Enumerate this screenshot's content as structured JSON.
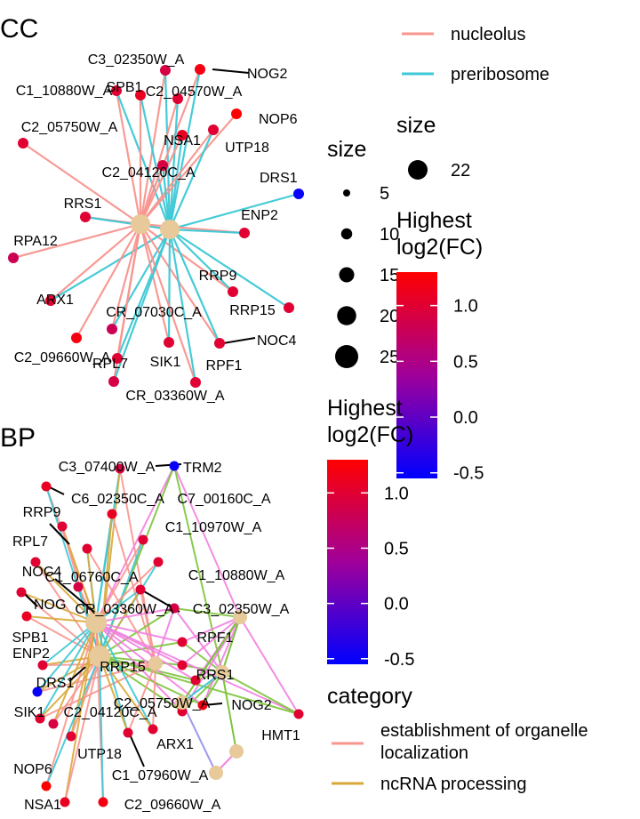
{
  "chart_data": [
    {
      "type": "network",
      "title": "CC",
      "hubs": [
        {
          "name": "nucleolus",
          "size": 22
        },
        {
          "name": "preribosome",
          "size": 22
        }
      ],
      "genes": [
        {
          "name": "C3_02350W_A",
          "log2fc": 0.9
        },
        {
          "name": "NOG2",
          "log2fc": 1.2
        },
        {
          "name": "C1_10880W_A",
          "log2fc": 1.0
        },
        {
          "name": "SPB1",
          "log2fc": 1.1
        },
        {
          "name": "C2_04570W_A",
          "log2fc": 1.0
        },
        {
          "name": "NOP6",
          "log2fc": 1.3
        },
        {
          "name": "C2_05750W_A",
          "log2fc": 1.0
        },
        {
          "name": "NSA1",
          "log2fc": 1.1
        },
        {
          "name": "UTP18",
          "log2fc": 1.0
        },
        {
          "name": "C2_04120C_A",
          "log2fc": 0.9
        },
        {
          "name": "DRS1",
          "log2fc": -0.5
        },
        {
          "name": "RRS1",
          "log2fc": 1.0
        },
        {
          "name": "ENP2",
          "log2fc": 1.0
        },
        {
          "name": "RPA12",
          "log2fc": 0.8
        },
        {
          "name": "RRP9",
          "log2fc": 1.0
        },
        {
          "name": "ARX1",
          "log2fc": 1.0
        },
        {
          "name": "RRP15",
          "log2fc": 1.0
        },
        {
          "name": "CR_07030C_A",
          "log2fc": 0.8
        },
        {
          "name": "NOC4",
          "log2fc": 1.0
        },
        {
          "name": "C2_09660W_A",
          "log2fc": 1.2
        },
        {
          "name": "RPL7",
          "log2fc": 1.0
        },
        {
          "name": "SIK1",
          "log2fc": 1.0
        },
        {
          "name": "RPF1",
          "log2fc": 1.0
        },
        {
          "name": "CR_03360W_A",
          "log2fc": 0.9
        }
      ],
      "legend": {
        "category_entries": [
          "nucleolus",
          "preribosome"
        ],
        "size_title": "size",
        "size_values": [
          5,
          10,
          15,
          20,
          25
        ],
        "hub_size_title": "size",
        "hub_size_values": [
          22
        ],
        "color_title": "Highest log2(FC)",
        "color_ticks": [
          1.0,
          0.5,
          0.0,
          -0.5
        ],
        "color_tick_labels": [
          "1.0",
          "0.5",
          "0.0",
          "-0.5"
        ],
        "color_range": [
          -0.55,
          1.3
        ]
      }
    },
    {
      "type": "network",
      "title": "BP",
      "genes": [
        {
          "name": "C3_07400W_A",
          "log2fc": 0.9
        },
        {
          "name": "TRM2",
          "log2fc": -0.5
        },
        {
          "name": "C6_02350C_A",
          "log2fc": 1.1
        },
        {
          "name": "C7_00160C_A",
          "log2fc": 1.1
        },
        {
          "name": "RRP9",
          "log2fc": 1.0
        },
        {
          "name": "C1_10970W_A",
          "log2fc": 1.0
        },
        {
          "name": "RPL7",
          "log2fc": 1.0
        },
        {
          "name": "NOC4",
          "log2fc": 1.0
        },
        {
          "name": "C1_06760C_A",
          "log2fc": 1.0
        },
        {
          "name": "C1_10880W_A",
          "log2fc": 1.0
        },
        {
          "name": "NOG",
          "log2fc": 1.0
        },
        {
          "name": "CR_03360W_A",
          "log2fc": 0.9
        },
        {
          "name": "C3_02350W_A",
          "log2fc": 0.9
        },
        {
          "name": "SPB1",
          "log2fc": 1.1
        },
        {
          "name": "RPF1",
          "log2fc": 1.0
        },
        {
          "name": "ENP2",
          "log2fc": 1.0
        },
        {
          "name": "RRP15",
          "log2fc": 1.0
        },
        {
          "name": "RRS1",
          "log2fc": 1.0
        },
        {
          "name": "DRS1",
          "log2fc": -0.5
        },
        {
          "name": "C2_05750W_A",
          "log2fc": 1.0
        },
        {
          "name": "NOG2",
          "log2fc": 1.2
        },
        {
          "name": "SIK1",
          "log2fc": 1.0
        },
        {
          "name": "C2_04120C_A",
          "log2fc": 0.9
        },
        {
          "name": "HMT1",
          "log2fc": 1.0
        },
        {
          "name": "ARX1",
          "log2fc": 1.0
        },
        {
          "name": "UTP18",
          "log2fc": 1.0
        },
        {
          "name": "NOP6",
          "log2fc": 1.3
        },
        {
          "name": "C1_07960W_A",
          "log2fc": 1.0
        },
        {
          "name": "NSA1",
          "log2fc": 1.1
        },
        {
          "name": "C2_09660W_A",
          "log2fc": 1.2
        }
      ],
      "legend": {
        "color_title": "Highest log2(FC)",
        "color_ticks": [
          1.0,
          0.5,
          0.0,
          -0.5
        ],
        "color_tick_labels": [
          "1.0",
          "0.5",
          "0.0",
          "-0.5"
        ],
        "color_range": [
          -0.55,
          1.3
        ],
        "category_title": "category",
        "category_entries": [
          "establishment of organelle localization",
          "ncRNA processing"
        ]
      }
    }
  ],
  "colors": {
    "nucleolus": "#F8958F",
    "preribosome": "#3CC8D5",
    "establishment of organelle localization": "#F8958F",
    "ncRNA processing": "#D8A83A",
    "ribosome biogenesis": "#3CC8D5",
    "rRNA processing": "#7CC43A",
    "other": "#F27FE0",
    "other2": "#9AA0F0",
    "hub": "#E8C99A",
    "gradient_high": "#FF0000",
    "gradient_mid": "#A0009A",
    "gradient_low": "#0000FF"
  }
}
